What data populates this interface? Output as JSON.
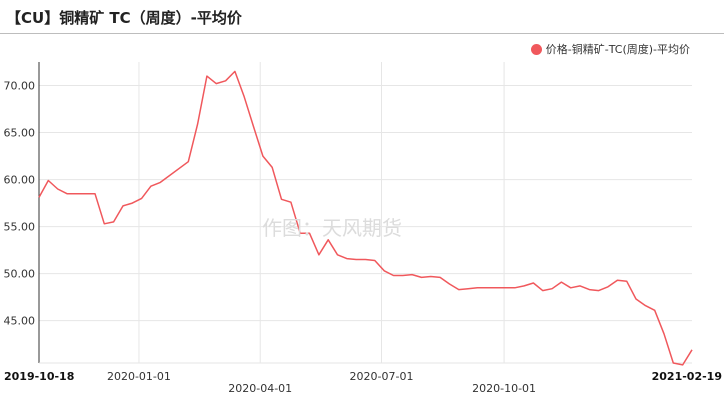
{
  "title": "【CU】铜精矿 TC（周度）-平均价",
  "legend_label": "价格-铜精矿-TC(周度)-平均价",
  "watermark": "作图：天风期货",
  "colors": {
    "series": "#f0585c",
    "grid": "#e6e6e6",
    "axis": "#333333"
  },
  "chart_data": {
    "type": "line",
    "title": "【CU】铜精矿 TC（周度）-平均价",
    "xlabel": "",
    "ylabel": "",
    "ylim": [
      40.5,
      72.5
    ],
    "y_ticks": [
      "70.00",
      "65.00",
      "60.00",
      "55.00",
      "50.00",
      "45.00"
    ],
    "x_ticks": [
      {
        "label": "2019-10-18",
        "date": "2019-10-18",
        "row": 0,
        "bold": true
      },
      {
        "label": "2020-01-01",
        "date": "2020-01-01",
        "row": 0,
        "bold": false
      },
      {
        "label": "2020-04-01",
        "date": "2020-04-01",
        "row": 1,
        "bold": false
      },
      {
        "label": "2020-07-01",
        "date": "2020-07-01",
        "row": 0,
        "bold": false
      },
      {
        "label": "2020-10-01",
        "date": "2020-10-01",
        "row": 1,
        "bold": false
      },
      {
        "label": "2021-02-19",
        "date": "2021-02-19",
        "row": 0,
        "bold": true
      }
    ],
    "grid": true,
    "legend_position": "top-right",
    "series": [
      {
        "name": "价格-铜精矿-TC(周度)-平均价",
        "x": [
          "2019-10-18",
          "2019-10-25",
          "2019-11-01",
          "2019-11-08",
          "2019-11-15",
          "2019-11-22",
          "2019-11-29",
          "2019-12-06",
          "2019-12-13",
          "2019-12-20",
          "2019-12-27",
          "2020-01-03",
          "2020-01-10",
          "2020-01-17",
          "2020-02-07",
          "2020-02-14",
          "2020-02-21",
          "2020-02-28",
          "2020-03-06",
          "2020-03-13",
          "2020-03-20",
          "2020-03-27",
          "2020-04-03",
          "2020-04-10",
          "2020-04-17",
          "2020-04-24",
          "2020-05-01",
          "2020-05-08",
          "2020-05-15",
          "2020-05-22",
          "2020-05-29",
          "2020-06-05",
          "2020-06-12",
          "2020-06-19",
          "2020-06-26",
          "2020-07-03",
          "2020-07-10",
          "2020-07-17",
          "2020-07-24",
          "2020-07-31",
          "2020-08-07",
          "2020-08-14",
          "2020-08-21",
          "2020-08-28",
          "2020-09-04",
          "2020-09-11",
          "2020-09-18",
          "2020-09-25",
          "2020-10-02",
          "2020-10-09",
          "2020-10-16",
          "2020-10-23",
          "2020-10-30",
          "2020-11-06",
          "2020-11-13",
          "2020-11-20",
          "2020-11-27",
          "2020-12-04",
          "2020-12-11",
          "2020-12-18",
          "2020-12-25",
          "2021-01-01",
          "2021-01-08",
          "2021-01-15",
          "2021-01-22",
          "2021-01-29",
          "2021-02-05",
          "2021-02-12",
          "2021-02-19"
        ],
        "values": [
          58.1,
          59.9,
          59.0,
          58.5,
          58.5,
          58.5,
          58.5,
          55.3,
          55.5,
          57.2,
          57.5,
          58.0,
          59.3,
          59.7,
          61.9,
          65.9,
          71.0,
          70.2,
          70.5,
          71.5,
          68.8,
          65.6,
          62.5,
          61.3,
          57.9,
          57.6,
          54.3,
          54.3,
          52.0,
          53.6,
          52.0,
          51.6,
          51.5,
          51.5,
          51.4,
          50.3,
          49.8,
          49.8,
          49.9,
          49.6,
          49.7,
          49.6,
          48.9,
          48.3,
          48.4,
          48.5,
          48.5,
          48.5,
          48.5,
          48.5,
          48.7,
          49.0,
          48.2,
          48.4,
          49.1,
          48.5,
          48.7,
          48.3,
          48.2,
          48.6,
          49.3,
          49.2,
          47.3,
          46.6,
          46.1,
          43.6,
          40.5,
          40.3,
          41.9
        ]
      }
    ]
  }
}
